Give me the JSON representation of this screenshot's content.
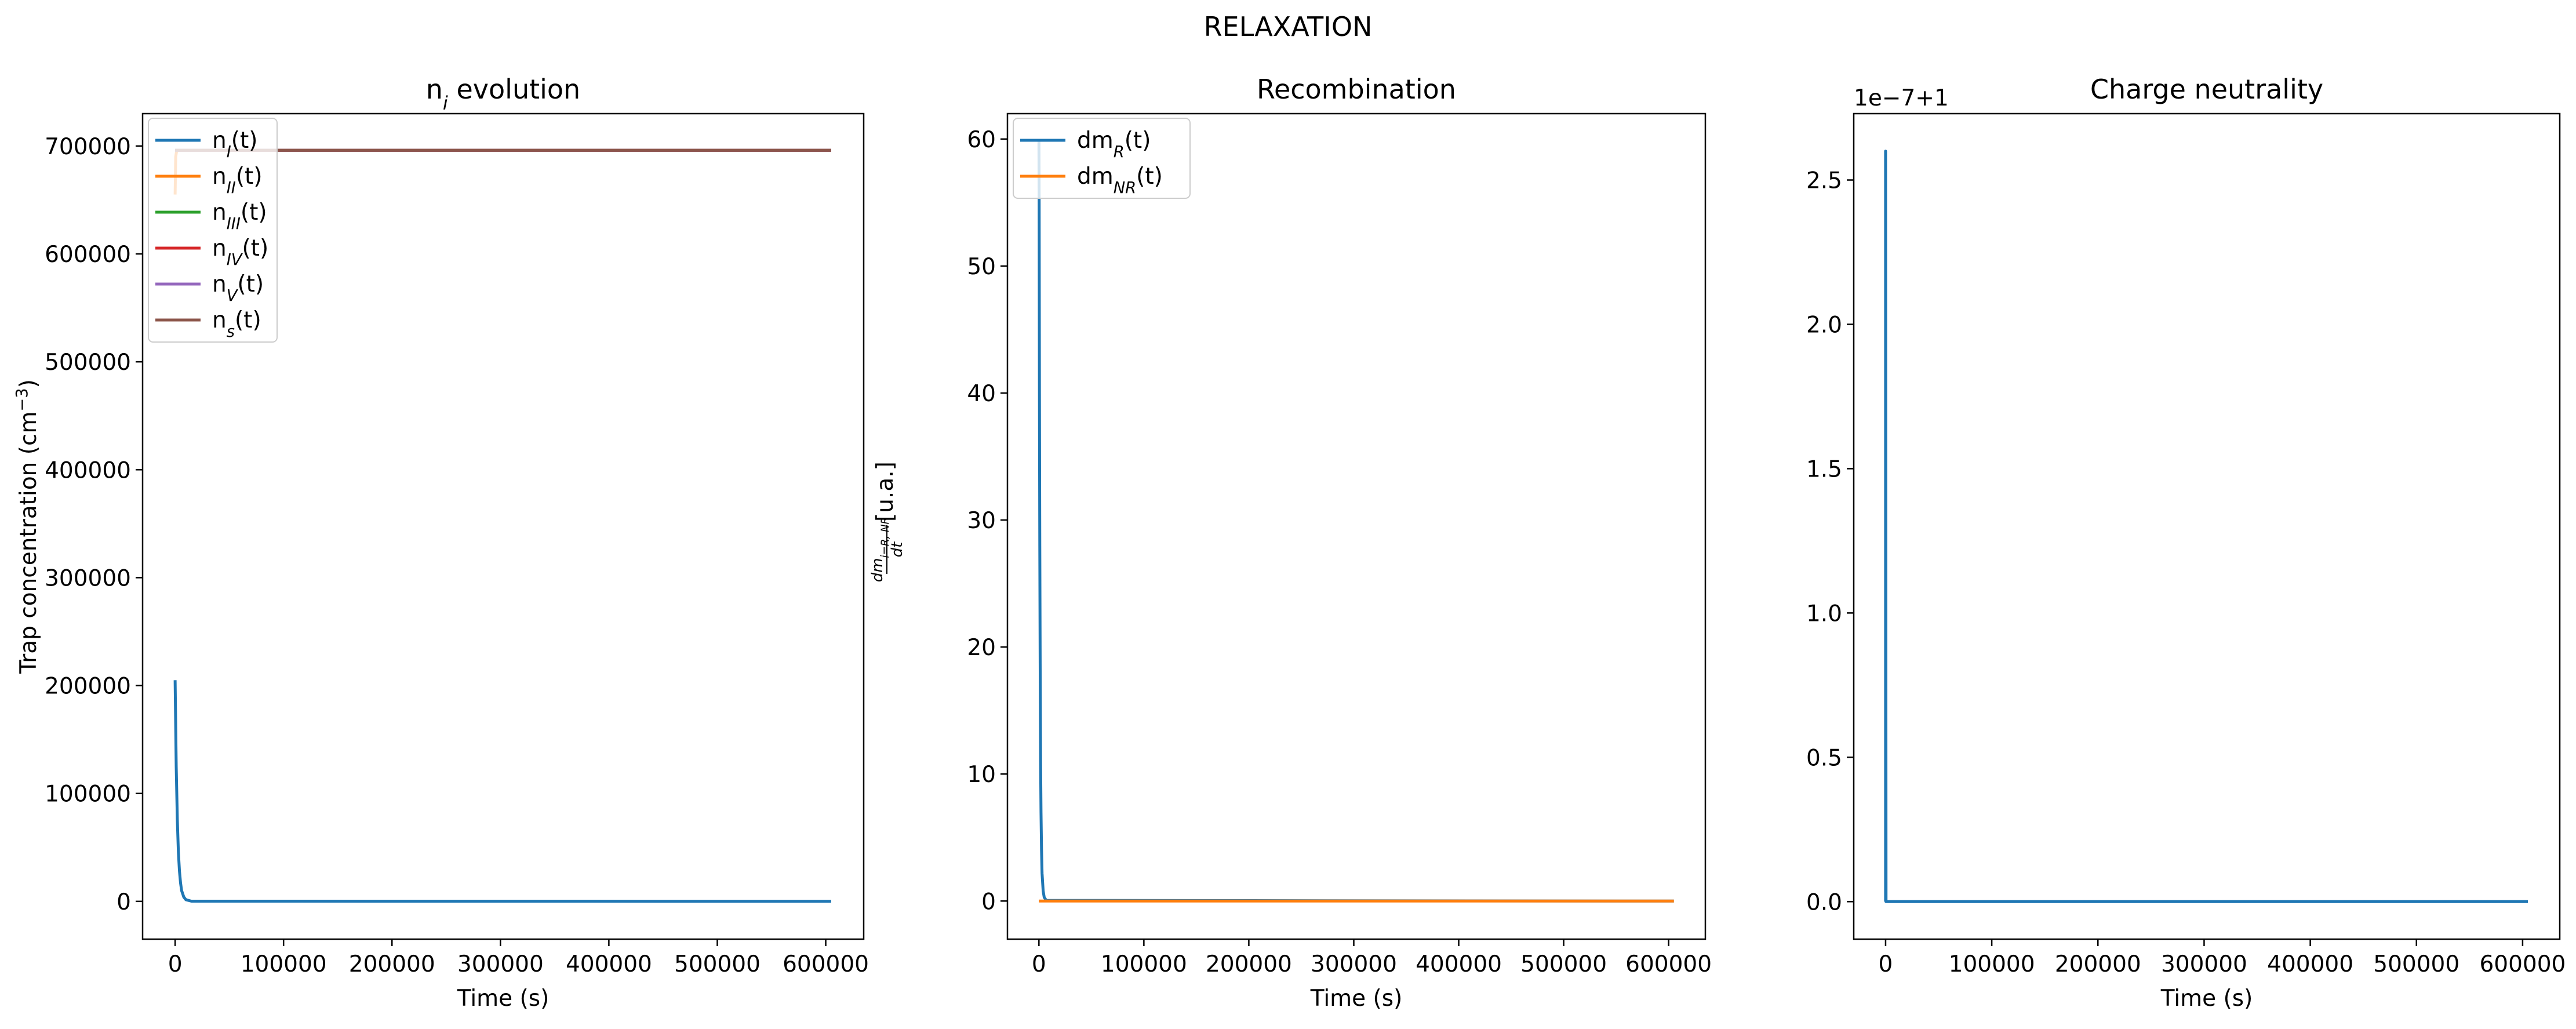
{
  "suptitle": "RELAXATION",
  "chart_data": [
    {
      "type": "line",
      "title": "n",
      "title_sub": "i",
      "title_rest": " evolution",
      "xlabel": "Time (s)",
      "ylabel": "Trap concentration (cm",
      "ylabel_sup": "−3",
      "ylabel_close": ")",
      "xlim": [
        -30000,
        635000
      ],
      "ylim": [
        -35000,
        730000
      ],
      "xticks": [
        0,
        100000,
        200000,
        300000,
        400000,
        500000,
        600000
      ],
      "xtick_labels": [
        "0",
        "100000",
        "200000",
        "300000",
        "400000",
        "500000",
        "600000"
      ],
      "yticks": [
        0,
        100000,
        200000,
        300000,
        400000,
        500000,
        600000,
        700000
      ],
      "ytick_labels": [
        "0",
        "100000",
        "200000",
        "300000",
        "400000",
        "500000",
        "600000",
        "700000"
      ],
      "legend_position": "upper-left",
      "series": [
        {
          "name": "n",
          "sub": "I",
          "rest": "(t)",
          "color": "#1f77b4",
          "x": [
            0,
            1000,
            2000,
            3000,
            4000,
            5000,
            6000,
            8000,
            10000,
            15000,
            605000
          ],
          "y": [
            205000,
            125000,
            76000,
            46000,
            28000,
            17000,
            10000,
            4000,
            1500,
            200,
            0
          ]
        },
        {
          "name": "n",
          "sub": "II",
          "rest": "(t)",
          "color": "#ff7f0e",
          "x": [
            0,
            500,
            1500,
            605000
          ],
          "y": [
            655000,
            690000,
            696000,
            696000
          ]
        },
        {
          "name": "n",
          "sub": "III",
          "rest": "(t)",
          "color": "#2ca02c",
          "x": [
            0,
            605000
          ],
          "y": [
            696000,
            696000
          ]
        },
        {
          "name": "n",
          "sub": "IV",
          "rest": "(t)",
          "color": "#d62728",
          "x": [
            0,
            605000
          ],
          "y": [
            696000,
            696000
          ]
        },
        {
          "name": "n",
          "sub": "V",
          "rest": "(t)",
          "color": "#9467bd",
          "x": [
            0,
            605000
          ],
          "y": [
            696000,
            696000
          ]
        },
        {
          "name": "n",
          "sub": "s",
          "rest": "(t)",
          "color": "#8c564b",
          "x": [
            0,
            605000
          ],
          "y": [
            696000,
            696000
          ]
        }
      ]
    },
    {
      "type": "line",
      "title": "Recombination",
      "xlabel": "Time (s)",
      "ylabel": "dm",
      "ylabel_sub": "i=R, NR",
      "ylabel_den": "dt",
      "ylabel_unit": " [u.a.]",
      "xlim": [
        -30000,
        635000
      ],
      "ylim": [
        -3,
        62
      ],
      "xticks": [
        0,
        100000,
        200000,
        300000,
        400000,
        500000,
        600000
      ],
      "xtick_labels": [
        "0",
        "100000",
        "200000",
        "300000",
        "400000",
        "500000",
        "600000"
      ],
      "yticks": [
        0,
        10,
        20,
        30,
        40,
        50,
        60
      ],
      "ytick_labels": [
        "0",
        "10",
        "20",
        "30",
        "40",
        "50",
        "60"
      ],
      "legend_position": "upper-left",
      "series": [
        {
          "name": "dm",
          "sub": "R",
          "rest": "(t)",
          "color": "#1f77b4",
          "x": [
            0,
            200,
            500,
            800,
            1200,
            1600,
            2000,
            2500,
            3000,
            4000,
            5000,
            7000,
            605000
          ],
          "y": [
            60,
            55,
            40,
            28,
            18,
            11,
            7,
            4,
            2.2,
            0.8,
            0.3,
            0.05,
            0
          ]
        },
        {
          "name": "dm",
          "sub": "NR",
          "rest": "(t)",
          "color": "#ff7f0e",
          "x": [
            0,
            605000
          ],
          "y": [
            0,
            0
          ]
        }
      ]
    },
    {
      "type": "line",
      "title": "Charge neutrality",
      "xlabel": "Time (s)",
      "offset_label": "1e−7+1",
      "xlim": [
        -30000,
        635000
      ],
      "ylim": [
        -0.13,
        2.73
      ],
      "xticks": [
        0,
        100000,
        200000,
        300000,
        400000,
        500000,
        600000
      ],
      "xtick_labels": [
        "0",
        "100000",
        "200000",
        "300000",
        "400000",
        "500000",
        "600000"
      ],
      "yticks": [
        0.0,
        0.5,
        1.0,
        1.5,
        2.0,
        2.5
      ],
      "ytick_labels": [
        "0.0",
        "0.5",
        "1.0",
        "1.5",
        "2.0",
        "2.5"
      ],
      "series": [
        {
          "color": "#1f77b4",
          "x": [
            0,
            0,
            400,
            605000
          ],
          "y": [
            0,
            2.6,
            0,
            0
          ]
        }
      ]
    }
  ]
}
